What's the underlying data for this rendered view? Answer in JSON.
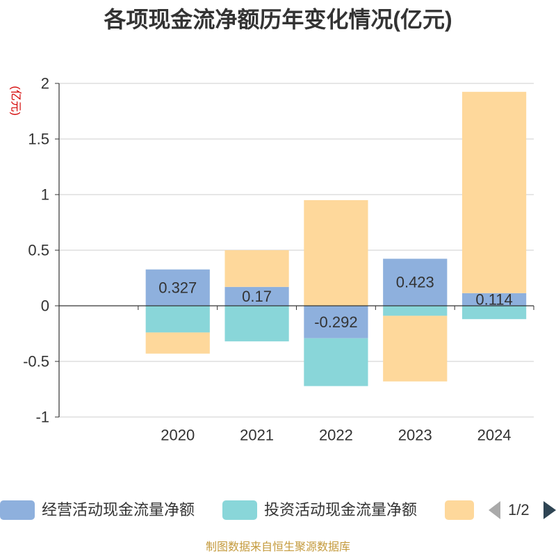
{
  "chart_data": {
    "type": "bar",
    "stacked": true,
    "title": "各项现金流净额历年变化情况(亿元)",
    "ylabel": "(亿元)",
    "xlabel": "",
    "categories": [
      "2020",
      "2021",
      "2022",
      "2023",
      "2024"
    ],
    "ylim": [
      -1,
      2
    ],
    "yticks": [
      -1,
      -0.5,
      0,
      0.5,
      1,
      1.5,
      2
    ],
    "grid": true,
    "legend_position": "bottom",
    "series": [
      {
        "name": "经营活动现金流量净额",
        "color": "#8eb0dd",
        "data_labels": true,
        "values": [
          0.327,
          0.17,
          -0.292,
          0.423,
          0.114
        ]
      },
      {
        "name": "投资活动现金流量净额",
        "color": "#89d6d9",
        "values": [
          -0.24,
          -0.32,
          -0.43,
          -0.09,
          -0.12
        ]
      },
      {
        "color": "#fed89b",
        "values": [
          -0.19,
          0.33,
          0.95,
          -0.59,
          1.81
        ]
      }
    ]
  },
  "legend": {
    "page_label": "1/2",
    "prev_icon": "triangle-left-icon",
    "next_icon": "triangle-right-icon",
    "prev_color": "#aaaaaa",
    "next_color": "#2f4554"
  },
  "footer": "制图数据来自恒生聚源数据库",
  "colors": {
    "unit_label": "#d40000",
    "footer": "#c49a3c",
    "text": "#333333"
  }
}
